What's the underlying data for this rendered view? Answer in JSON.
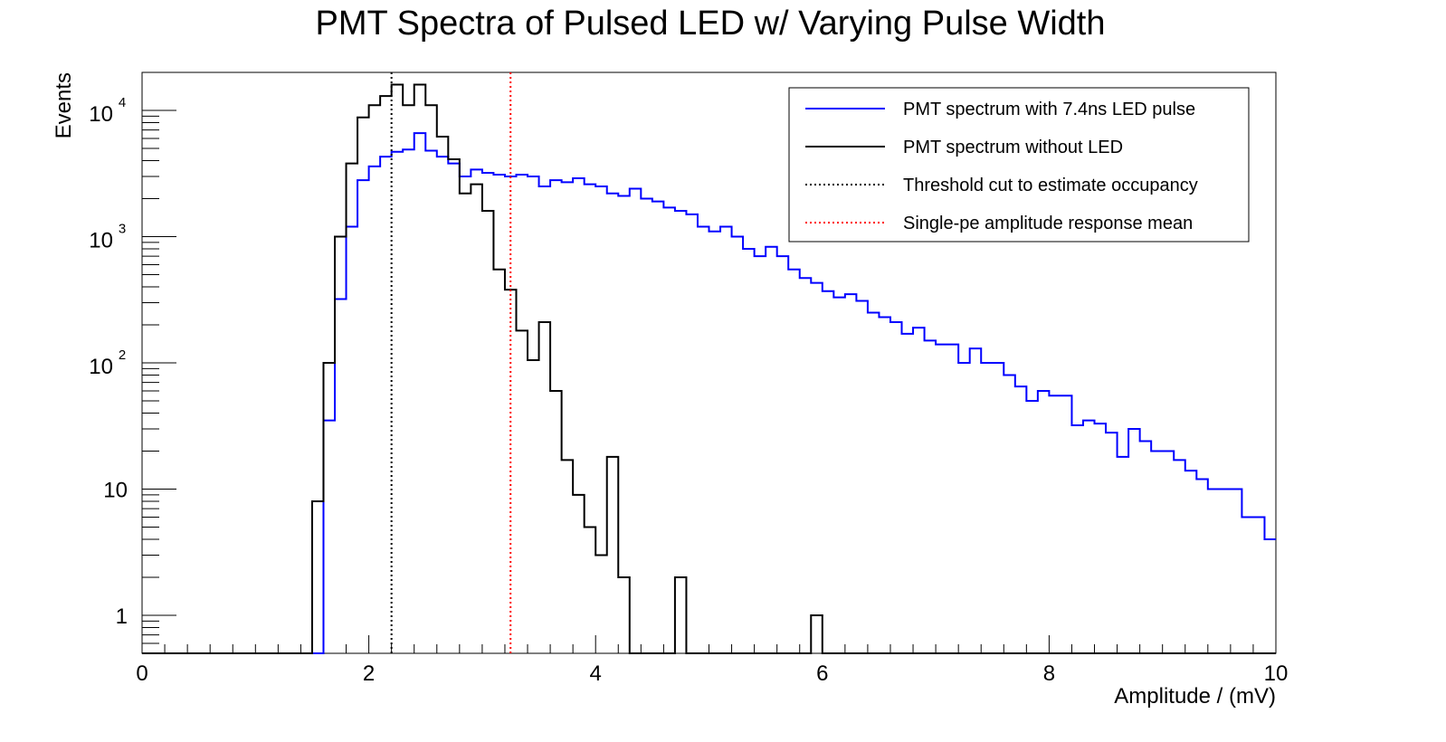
{
  "chart_data": {
    "type": "histogram",
    "title": "PMT Spectra of Pulsed LED w/ Varying Pulse Width",
    "xlabel": "Amplitude / (mV)",
    "ylabel": "Events",
    "xlim": [
      0,
      10
    ],
    "ylim": [
      0.5,
      20000
    ],
    "y_scale": "log",
    "grid": false,
    "legend_position": "top-right",
    "x_ticks": [
      {
        "value": 0,
        "label": "0"
      },
      {
        "value": 2,
        "label": "2"
      },
      {
        "value": 4,
        "label": "4"
      },
      {
        "value": 6,
        "label": "6"
      },
      {
        "value": 8,
        "label": "8"
      },
      {
        "value": 10,
        "label": "10"
      }
    ],
    "y_ticks": [
      {
        "value": 1,
        "label": "1"
      },
      {
        "value": 10,
        "label": "10"
      },
      {
        "value": 100,
        "base": "10",
        "exp": "2"
      },
      {
        "value": 1000,
        "base": "10",
        "exp": "3"
      },
      {
        "value": 10000,
        "base": "10",
        "exp": "4"
      }
    ],
    "bin_edges_start": 0,
    "bin_width": 0.1,
    "series": [
      {
        "name": "PMT spectrum with 7.4ns LED pulse",
        "color": "#0000ff",
        "style": "solid",
        "values": [
          0,
          0,
          0,
          0,
          0,
          0,
          0,
          0,
          0,
          0,
          0,
          0,
          0,
          0,
          0,
          0,
          35,
          320,
          1200,
          2800,
          3600,
          4300,
          4700,
          4900,
          6600,
          4800,
          4300,
          3800,
          3000,
          3400,
          3200,
          3100,
          3000,
          3100,
          3000,
          2500,
          2800,
          2700,
          2900,
          2600,
          2500,
          2200,
          2100,
          2400,
          2000,
          1900,
          1700,
          1600,
          1500,
          1200,
          1100,
          1200,
          1000,
          800,
          700,
          830,
          700,
          550,
          470,
          430,
          370,
          330,
          350,
          310,
          250,
          230,
          210,
          170,
          190,
          150,
          140,
          140,
          100,
          130,
          100,
          100,
          80,
          65,
          50,
          60,
          55,
          55,
          32,
          35,
          33,
          28,
          18,
          30,
          24,
          20,
          20,
          17,
          14,
          12,
          10,
          10,
          10,
          6,
          6,
          4
        ]
      },
      {
        "name": "PMT spectrum without LED",
        "color": "#000000",
        "style": "solid",
        "values": [
          0,
          0,
          0,
          0,
          0,
          0,
          0,
          0,
          0,
          0,
          0,
          0,
          0,
          0,
          0,
          8,
          100,
          1000,
          3800,
          8800,
          11000,
          13000,
          16000,
          11000,
          16000,
          11000,
          6200,
          4100,
          2200,
          2600,
          1600,
          550,
          380,
          180,
          105,
          210,
          60,
          17,
          9,
          5,
          3,
          18,
          2,
          0,
          0,
          0,
          0,
          2,
          0,
          0,
          0,
          0,
          0,
          0,
          0,
          0,
          0,
          0,
          0,
          1,
          0,
          0,
          0,
          0,
          0,
          0,
          0,
          0,
          0,
          0,
          0,
          0,
          0,
          0,
          0,
          0,
          0,
          0,
          0,
          0,
          0,
          0,
          0,
          0,
          0,
          0,
          0,
          0,
          0,
          0,
          0,
          0,
          0,
          0,
          0,
          0,
          0,
          0,
          0,
          0
        ]
      }
    ],
    "vertical_lines": [
      {
        "name": "Threshold cut to estimate occupancy",
        "x": 2.2,
        "color": "#000000",
        "style": "dotted"
      },
      {
        "name": "Single-pe amplitude response mean",
        "x": 3.25,
        "color": "#ff0000",
        "style": "dotted"
      }
    ]
  }
}
